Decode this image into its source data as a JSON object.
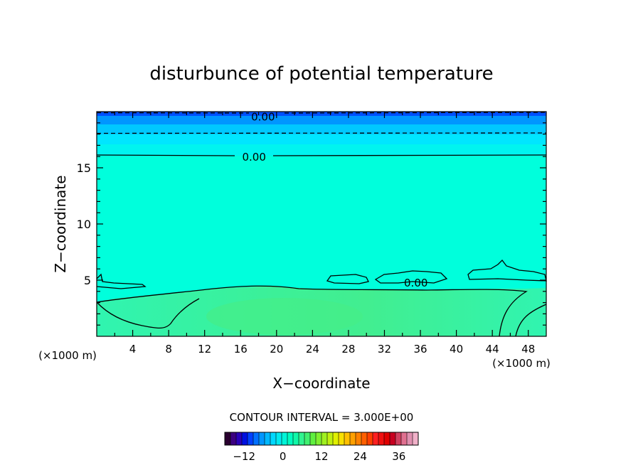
{
  "chart_data": {
    "type": "heatmap",
    "title": "disturbunce of potential temperature",
    "xlabel": "X−coordinate",
    "ylabel": "Z−coordinate",
    "x_unit_left": "(×1000 m)",
    "x_unit_right": "(×1000 m)",
    "xlim": [
      0,
      50
    ],
    "ylim": [
      0,
      20
    ],
    "x_ticks": [
      4,
      8,
      12,
      16,
      20,
      24,
      28,
      32,
      36,
      40,
      44,
      48
    ],
    "y_ticks": [
      5,
      10,
      15
    ],
    "contour_labels": [
      {
        "text": "0.00",
        "x": 18.5,
        "y": 19.6
      },
      {
        "text": "0.00",
        "x": 17.5,
        "y": 16.0
      },
      {
        "text": "0.00",
        "x": 35.5,
        "y": 4.8
      }
    ],
    "contour_interval_text": "CONTOUR INTERVAL = 3.000E+00",
    "colorbar": {
      "range": [
        -18,
        42
      ],
      "tick_values": [
        -12,
        0,
        12,
        24,
        36
      ],
      "tick_labels": [
        "−12",
        "0",
        "12",
        "24",
        "36"
      ]
    },
    "colors": {
      "field_main": "#00ffdc",
      "field_low": "#2cf5a8",
      "field_low_core": "#3af090",
      "top_band_1": "#00e6ff",
      "top_band_2": "#00c8ff",
      "top_band_3": "#0096ff",
      "top_band_4": "#0050ff"
    }
  }
}
